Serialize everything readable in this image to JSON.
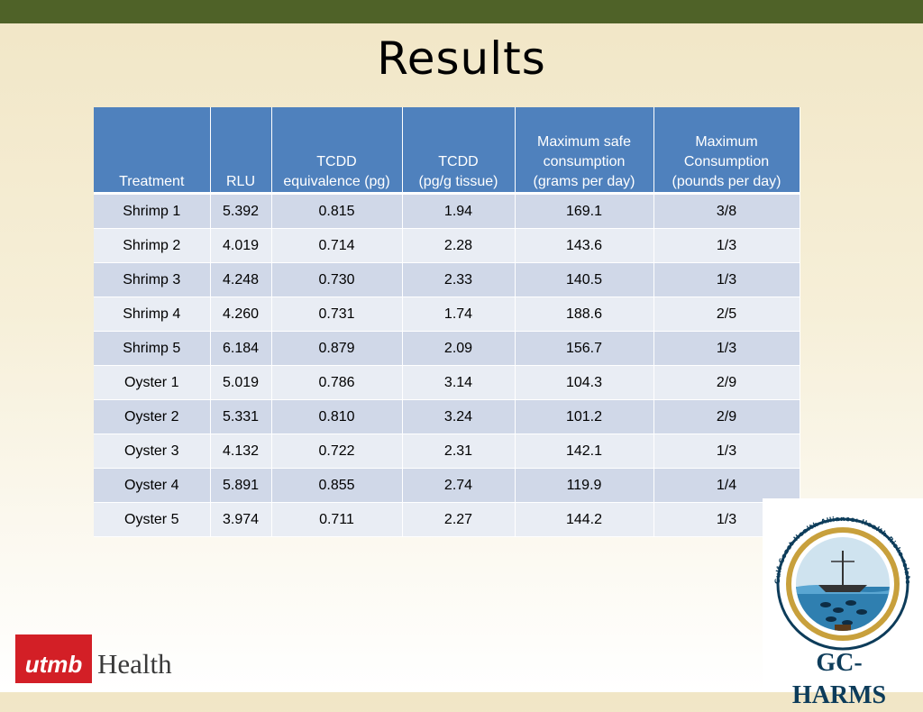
{
  "slide": {
    "title": "Results"
  },
  "table": {
    "headers": [
      [
        "Treatment"
      ],
      [
        "RLU"
      ],
      [
        "TCDD",
        "equivalence (pg)"
      ],
      [
        "TCDD",
        "(pg/g tissue)"
      ],
      [
        "Maximum safe",
        "consumption",
        "(grams per day)"
      ],
      [
        "Maximum",
        "Consumption",
        "(pounds per day)"
      ]
    ],
    "rows": [
      [
        "Shrimp 1",
        "5.392",
        "0.815",
        "1.94",
        "169.1",
        "3/8"
      ],
      [
        "Shrimp 2",
        "4.019",
        "0.714",
        "2.28",
        "143.6",
        "1/3"
      ],
      [
        "Shrimp 3",
        "4.248",
        "0.730",
        "2.33",
        "140.5",
        "1/3"
      ],
      [
        "Shrimp 4",
        "4.260",
        "0.731",
        "1.74",
        "188.6",
        "2/5"
      ],
      [
        "Shrimp 5",
        "6.184",
        "0.879",
        "2.09",
        "156.7",
        "1/3"
      ],
      [
        "Oyster 1",
        "5.019",
        "0.786",
        "3.14",
        "104.3",
        "2/9"
      ],
      [
        "Oyster 2",
        "5.331",
        "0.810",
        "3.24",
        "101.2",
        "2/9"
      ],
      [
        "Oyster 3",
        "4.132",
        "0.722",
        "2.31",
        "142.1",
        "1/3"
      ],
      [
        "Oyster 4",
        "5.891",
        "0.855",
        "2.74",
        "119.9",
        "1/4"
      ],
      [
        "Oyster 5",
        "3.974",
        "0.711",
        "2.27",
        "144.2",
        "1/3"
      ]
    ]
  },
  "logos": {
    "utmb": {
      "mark": "utmb",
      "word": "Health",
      "color": "#d31f26"
    },
    "gc_harms": {
      "ring_text": "Gulf Coast Health Alliance: Health Risks related to the Macondo Spill",
      "name": "GC-HARMS",
      "color": "#0d3c5a"
    }
  },
  "colors": {
    "top_bar": "#4f6228",
    "header_fill": "#4f81bd",
    "row_odd": "#d0d8e8",
    "row_even": "#e9edf4"
  }
}
